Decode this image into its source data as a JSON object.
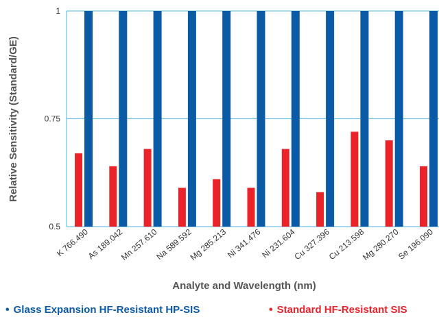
{
  "chart_data": {
    "type": "bar",
    "title": "",
    "xlabel": "Analyte and Wavelength (nm)",
    "ylabel": "Relative Sensitivity (Standard/GE)",
    "ylim": [
      0.5,
      1
    ],
    "yticks": [
      0.5,
      0.75,
      1
    ],
    "ytick_labels": [
      "0.5",
      "0.75",
      "1"
    ],
    "grid": true,
    "legend_position": "bottom",
    "categories": [
      "K 766.490",
      "As 189.042",
      "Mn 257.610",
      "Na 589.592",
      "Mg 285.213",
      "Ni 341.476",
      "Ni 231.604",
      "Cu 327.396",
      "Cu 213.598",
      "Mg 280.270",
      "Se 196.090"
    ],
    "series": [
      {
        "name": "Standard HF-Resistant SIS",
        "color": "#e8232a",
        "values": [
          0.67,
          0.64,
          0.68,
          0.59,
          0.61,
          0.59,
          0.68,
          0.58,
          0.72,
          0.7,
          0.64
        ]
      },
      {
        "name": "Glass Expansion HF-Resistant HP-SIS",
        "color": "#0b5aa6",
        "values": [
          1,
          1,
          1,
          1,
          1,
          1,
          1,
          1,
          1,
          1,
          1
        ]
      }
    ]
  },
  "colors": {
    "grid": "#4fb3df",
    "axis": "#4fb3df"
  }
}
